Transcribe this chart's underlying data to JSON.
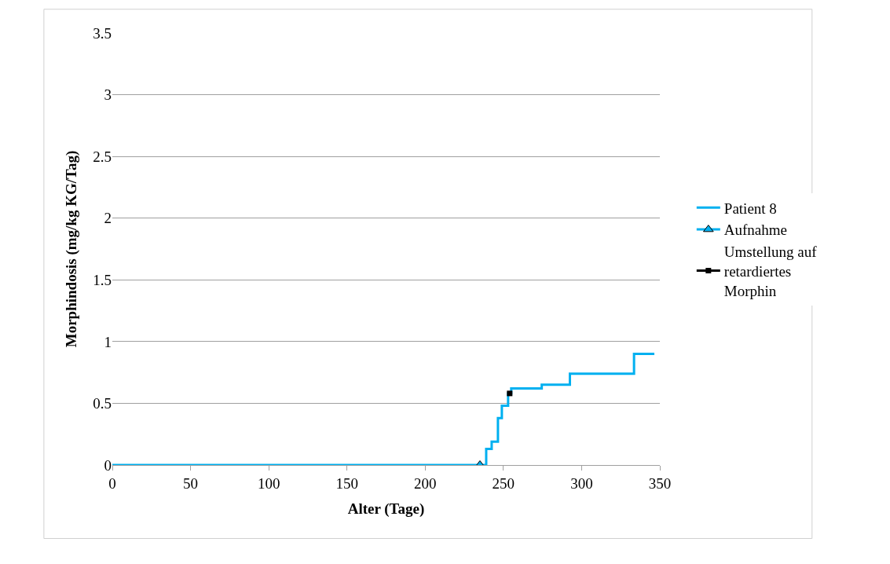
{
  "chart_data": {
    "type": "step",
    "xlabel": "Alter (Tage)",
    "ylabel": "Morphindosis (mg/kg KG/Tag)",
    "xlim": [
      0,
      350
    ],
    "xticks": [
      0,
      50,
      100,
      150,
      200,
      250,
      300,
      350
    ],
    "ylim": [
      0,
      3.5
    ],
    "yticks": [
      0,
      0.5,
      1,
      1.5,
      2,
      2.5,
      3,
      3.5
    ],
    "grid": "y",
    "legend": "right",
    "series": [
      {
        "name": "Patient 8",
        "color": "#00b0f0",
        "marker": "none",
        "x": [
          0,
          239,
          242.5,
          246.5,
          249,
          253,
          255,
          274.5,
          292.5,
          333.5,
          346.5
        ],
        "values": [
          0,
          0.13,
          0.19,
          0.38,
          0.48,
          0.58,
          0.62,
          0.65,
          0.74,
          0.9,
          0.9
        ]
      },
      {
        "name": "Aufnahme",
        "color": "#00b0f0",
        "type": "scatter",
        "marker": "triangle",
        "x": [
          235
        ],
        "values": [
          0
        ]
      },
      {
        "name": "Umstellung auf retardiertes Morphin",
        "color": "#000000",
        "type": "scatter",
        "marker": "square",
        "x": [
          254
        ],
        "values": [
          0.58
        ]
      }
    ]
  }
}
